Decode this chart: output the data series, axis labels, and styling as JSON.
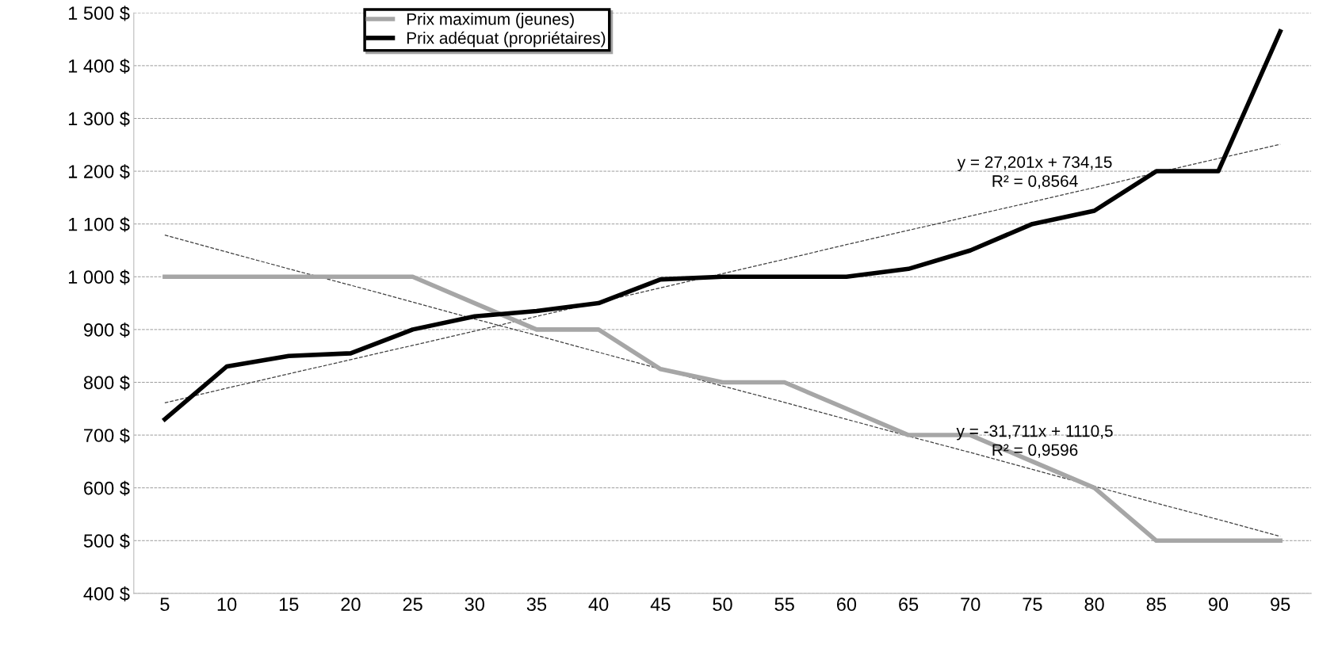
{
  "chart_data": {
    "type": "line",
    "x": [
      5,
      10,
      15,
      20,
      25,
      30,
      35,
      40,
      45,
      50,
      55,
      60,
      65,
      70,
      75,
      80,
      85,
      90,
      95
    ],
    "series": [
      {
        "name": "Prix maximum (jeunes)",
        "color": "#a6a6a6",
        "values": [
          1000,
          1000,
          1000,
          1000,
          1000,
          950,
          900,
          900,
          825,
          800,
          800,
          750,
          700,
          700,
          650,
          600,
          500,
          500,
          500
        ]
      },
      {
        "name": "Prix adéquat (propriétaires)",
        "color": "#000000",
        "values": [
          730,
          830,
          850,
          855,
          900,
          925,
          935,
          950,
          995,
          1000,
          1000,
          1000,
          1015,
          1050,
          1100,
          1125,
          1200,
          1200,
          1465
        ]
      },
      {
        "type": "line",
        "color": "#404040",
        "line_style": "dashed",
        "values": [
          761,
          789,
          816,
          843,
          870,
          897,
          925,
          952,
          979,
          1006,
          1033,
          1061,
          1088,
          1115,
          1142,
          1169,
          1197,
          1224,
          1251
        ]
      },
      {
        "type": "line",
        "color": "#404040",
        "line_style": "dashed",
        "values": [
          1079,
          1047,
          1015,
          984,
          952,
          920,
          889,
          857,
          825,
          793,
          762,
          730,
          698,
          667,
          635,
          603,
          571,
          540,
          508
        ]
      }
    ],
    "annotations": [
      "y = 27,201x + 734,15\nR² = 0,8564",
      "y = -31,711x + 1110,5\nR² = 0,9596"
    ],
    "xlim": [
      2.5,
      97.5
    ],
    "xticks": [
      5,
      10,
      15,
      20,
      25,
      30,
      35,
      40,
      45,
      50,
      55,
      60,
      65,
      70,
      75,
      80,
      85,
      90,
      95
    ],
    "ylim": [
      400,
      1500
    ],
    "yticks": [
      {
        "value": 400,
        "label": "400 $"
      },
      {
        "value": 500,
        "label": "500 $"
      },
      {
        "value": 600,
        "label": "600 $"
      },
      {
        "value": 700,
        "label": "700 $"
      },
      {
        "value": 800,
        "label": "800 $"
      },
      {
        "value": 900,
        "label": "900 $"
      },
      {
        "value": 1000,
        "label": "1 000 $"
      },
      {
        "value": 1100,
        "label": "1 100 $"
      },
      {
        "value": 1200,
        "label": "1 200 $"
      },
      {
        "value": 1300,
        "label": "1 300 $"
      },
      {
        "value": 1400,
        "label": "1 400 $"
      },
      {
        "value": 1500,
        "label": "1 500 $"
      }
    ],
    "grid": "y",
    "legend": "top",
    "line_style": "solid"
  }
}
